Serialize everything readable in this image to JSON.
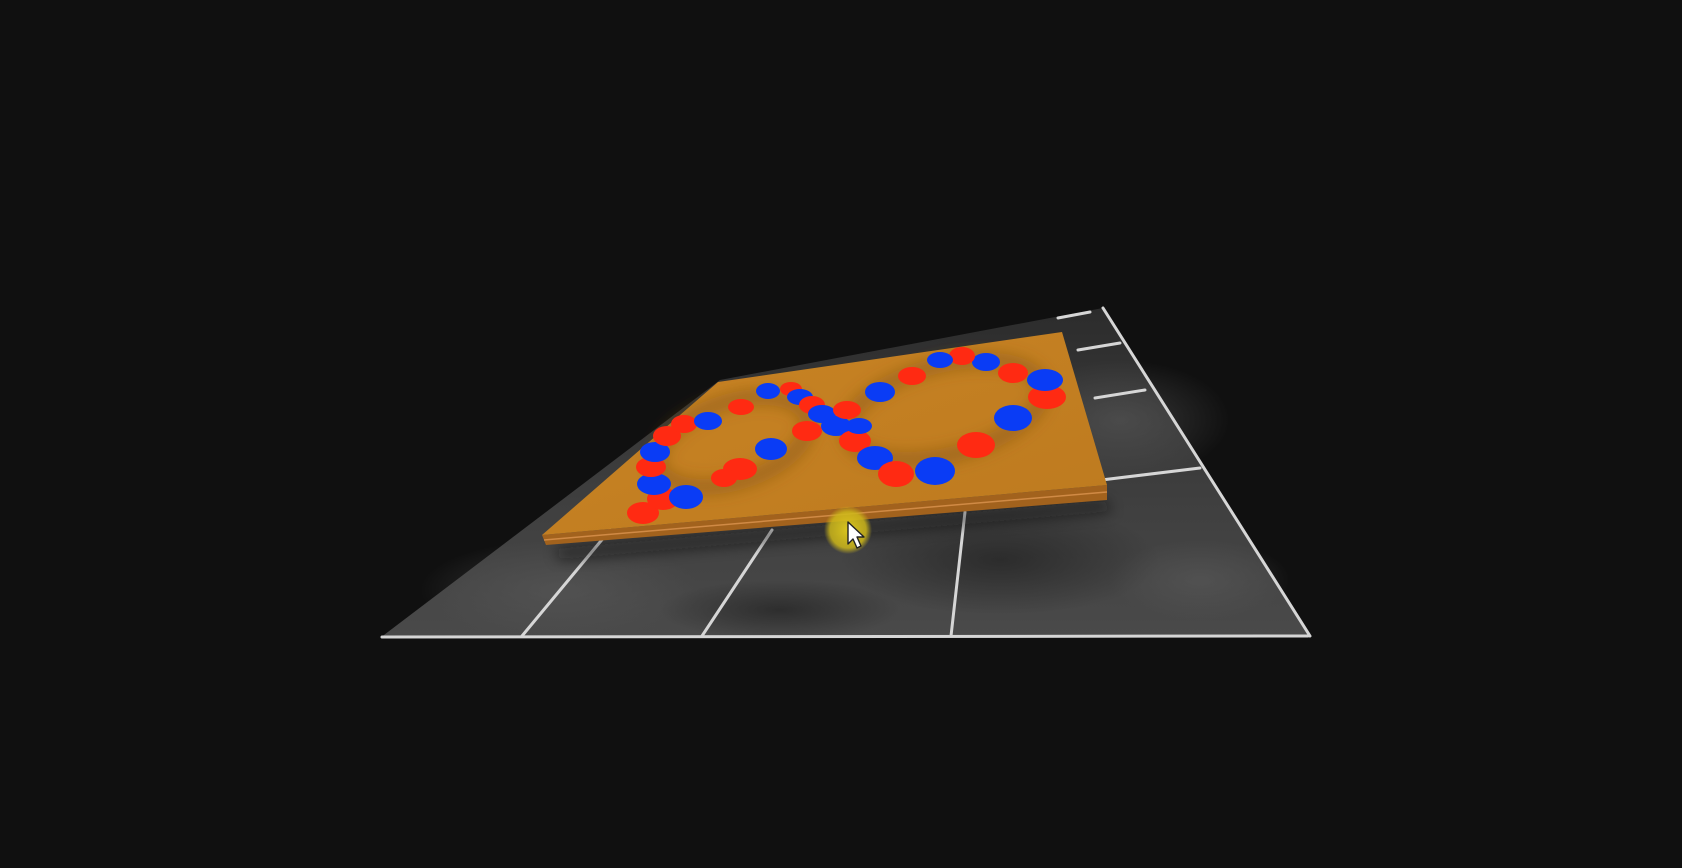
{
  "scene": {
    "background_color": "#101010",
    "floor": {
      "material": "dark-marble-tiles",
      "base_color": "#3a3a3a",
      "grout_color": "#d8d8d8"
    },
    "board": {
      "top_color": "#c47f22",
      "edge_color": "#a0611c",
      "pattern": "figure-eight-loop"
    },
    "pieces": {
      "red_color": "#ff2a12",
      "blue_color": "#0a3cf5"
    },
    "cursor": {
      "icon": "mouse-pointer-icon",
      "highlight_color": "#d7c21a"
    }
  }
}
